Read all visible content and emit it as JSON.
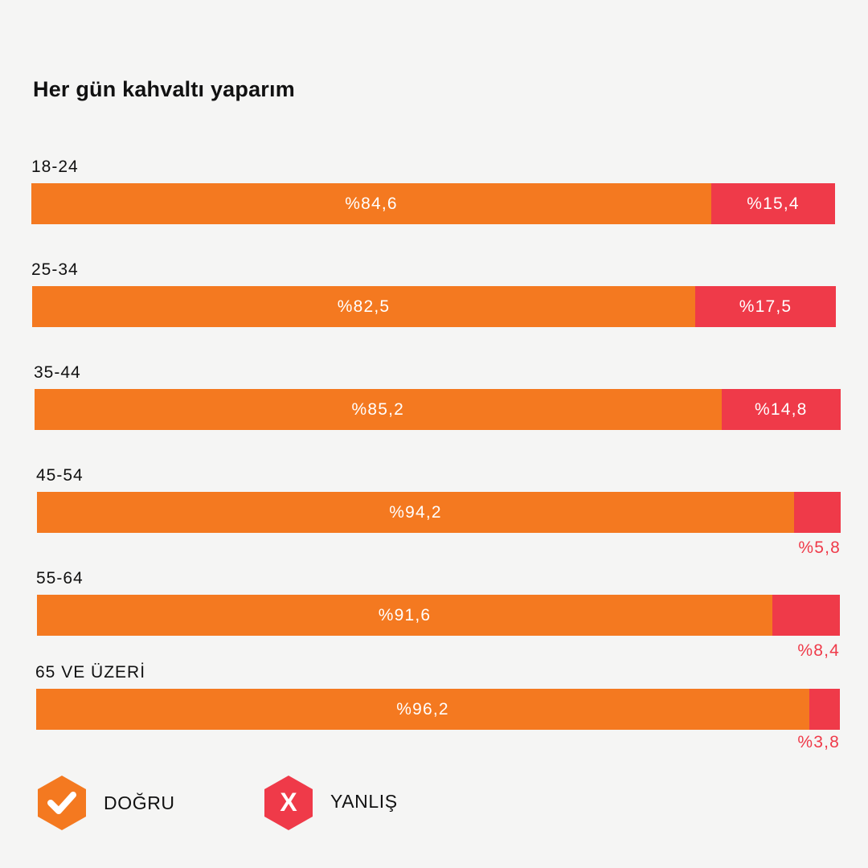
{
  "colors": {
    "correct": "#f47920",
    "wrong": "#ef3a49",
    "background": "#f5f5f4"
  },
  "chart_data": {
    "type": "bar",
    "orientation": "horizontal",
    "stacked": true,
    "title": "Her gün kahvaltı yaparım",
    "categories": [
      "18-24",
      "25-34",
      "35-44",
      "45-54",
      "55-64",
      "65 VE ÜZERİ"
    ],
    "series": [
      {
        "name": "DOĞRU",
        "values": [
          84.6,
          82.5,
          85.2,
          94.2,
          91.6,
          96.2
        ],
        "labels": [
          "%84,6",
          "%82,5",
          "%85,2",
          "%94,2",
          "%91,6",
          "%96,2"
        ]
      },
      {
        "name": "YANLIŞ",
        "values": [
          15.4,
          17.5,
          14.8,
          5.8,
          8.4,
          3.8
        ],
        "labels": [
          "%15,4",
          "%17,5",
          "%14,8",
          "%5,8",
          "%8,4",
          "%3,8"
        ]
      }
    ],
    "xlim": [
      0,
      100
    ]
  },
  "legend": {
    "items": [
      {
        "label": "DOĞRU",
        "icon": "checkmark-icon",
        "mark": "✓"
      },
      {
        "label": "YANLIŞ",
        "icon": "x-icon",
        "mark": "X"
      }
    ]
  }
}
